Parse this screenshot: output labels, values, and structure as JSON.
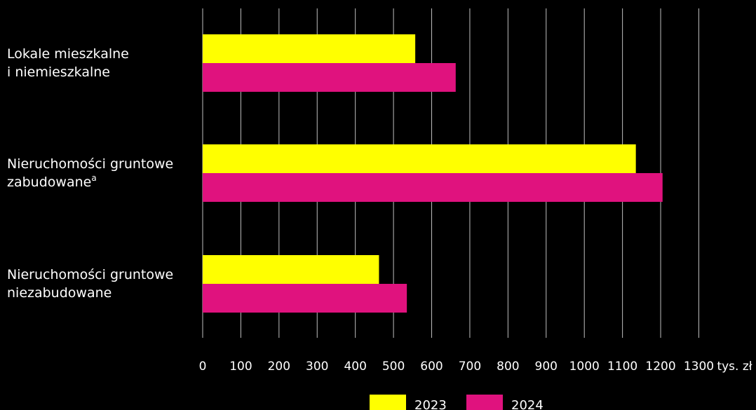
{
  "chart_data": {
    "type": "bar",
    "orientation": "horizontal",
    "categories": [
      {
        "lines": [
          "Lokale mieszkalne",
          "i niemieszkalne"
        ],
        "superscript": ""
      },
      {
        "lines": [
          "Nieruchomości gruntowe",
          "zabudowane"
        ],
        "superscript": "a"
      },
      {
        "lines": [
          "Nieruchomości gruntowe",
          "niezabudowane"
        ],
        "superscript": ""
      }
    ],
    "series": [
      {
        "name": "2023",
        "color": "#ffff00",
        "values": [
          557,
          1135,
          462
        ]
      },
      {
        "name": "2024",
        "color": "#e0127e",
        "values": [
          663,
          1205,
          535
        ]
      }
    ],
    "xlim": [
      0,
      1300
    ],
    "xticks": [
      0,
      100,
      200,
      300,
      400,
      500,
      600,
      700,
      800,
      900,
      1000,
      1100,
      1200,
      1300
    ],
    "x_unit": "tys. zł",
    "grid": "vertical",
    "legend_position": "bottom-center",
    "background": "#000000",
    "gridline_color": "#ffffff"
  }
}
